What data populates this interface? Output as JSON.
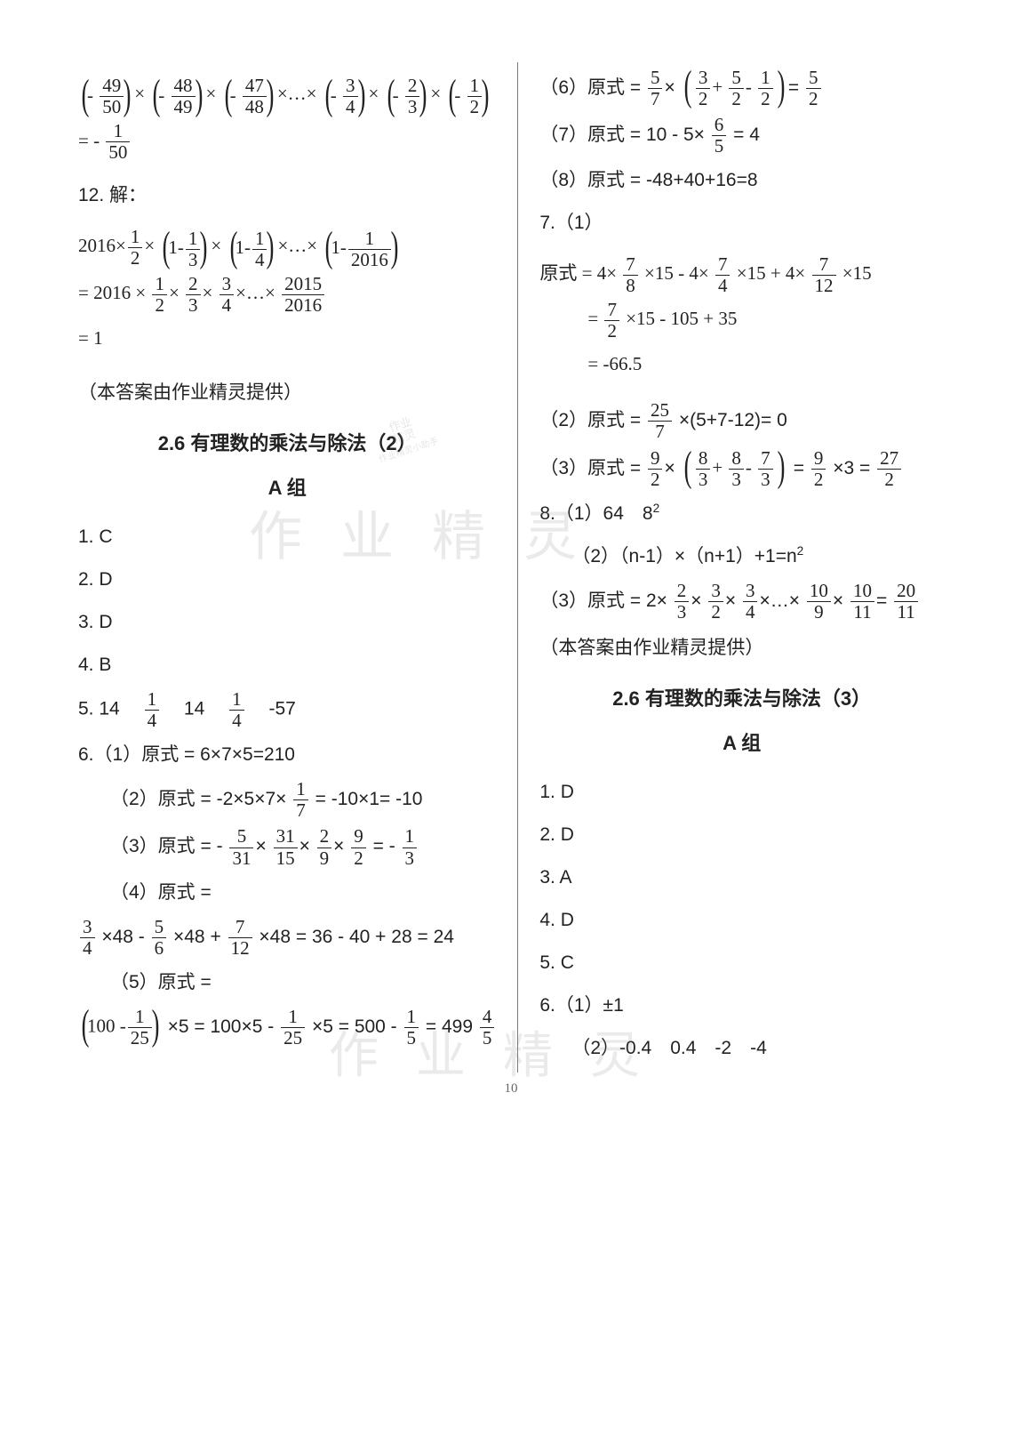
{
  "page_number": "10",
  "watermarks": {
    "main": "作 业 精 灵",
    "seal_l1": "作业",
    "seal_l2": "精灵",
    "seal_l3": "作业精灵小助手"
  },
  "left": {
    "eq11_1": {
      "f49_50_n": "49",
      "f49_50_d": "50",
      "f48_49_n": "48",
      "f48_49_d": "49",
      "f47_48_n": "47",
      "f47_48_d": "48",
      "f3_4_n": "3",
      "f3_4_d": "4",
      "f2_3_n": "2",
      "f2_3_d": "3",
      "f1_2_n": "1",
      "f1_2_d": "2",
      "res_n": "1",
      "res_d": "50"
    },
    "item12_label": "12. 解：",
    "eq12": {
      "a": "2016",
      "h_n": "1",
      "h_d": "2",
      "t1_a": "1",
      "t1_n": "1",
      "t1_d": "3",
      "t2_a": "1",
      "t2_n": "1",
      "t2_d": "4",
      "tn_a": "1",
      "tn_n": "1",
      "tn_d": "2016",
      "line2_pre": "= 2016 ×",
      "f1n": "1",
      "f1d": "2",
      "f2n": "2",
      "f2d": "3",
      "f3n": "3",
      "f3d": "4",
      "fln": "2015",
      "fld": "2016",
      "line3": "= 1"
    },
    "note1": "（本答案由作业精灵提供）",
    "heading2_6_2": "2.6 有理数的乘法与除法（2）",
    "groupA": "A 组",
    "a1": "1. C",
    "a2": "2. D",
    "a3": "3. D",
    "a4": "4. B",
    "a5_pre": "5. 14",
    "a5_f1n": "1",
    "a5_f1d": "4",
    "a5_mid": "14",
    "a5_f2n": "1",
    "a5_f2d": "4",
    "a5_end": "-57",
    "a6_1": "6.（1）原式 = 6×7×5=210",
    "a6_2_pre": "（2）原式 =",
    "a6_2_body": "-2×5×7×",
    "a6_2_fn": "1",
    "a6_2_fd": "7",
    "a6_2_mid": "= -10×1= -10",
    "a6_3_pre": "（3）原式 =",
    "a6_3_f1n": "5",
    "a6_3_f1d": "31",
    "a6_3_f2n": "31",
    "a6_3_f2d": "15",
    "a6_3_f3n": "2",
    "a6_3_f3d": "9",
    "a6_3_f4n": "9",
    "a6_3_f4d": "2",
    "a6_3_rn": "1",
    "a6_3_rd": "3",
    "a6_4_pre": "（4）原式 =",
    "a6_4_f1n": "3",
    "a6_4_f1d": "4",
    "a6_4_m1": "×48 -",
    "a6_4_f2n": "5",
    "a6_4_f2d": "6",
    "a6_4_m2": "×48 +",
    "a6_4_f3n": "7",
    "a6_4_f3d": "12",
    "a6_4_m3": "×48 = 36 - 40 + 28 = 24",
    "a6_5_pre": "（5）原式 =",
    "a6_5_pa": "100 -",
    "a6_5_pfn": "1",
    "a6_5_pfd": "25",
    "a6_5_m1": "×5 = 100×5 -",
    "a6_5_f2n": "1",
    "a6_5_f2d": "25",
    "a6_5_m2": "×5 = 500 -",
    "a6_5_f3n": "1",
    "a6_5_f3d": "5",
    "a6_5_m3": "= 499",
    "a6_5_rfn": "4",
    "a6_5_rfd": "5"
  },
  "right": {
    "a6_6_pre": "（6）原式 =",
    "a6_6_f1n": "5",
    "a6_6_f1d": "7",
    "a6_6_p1n": "3",
    "a6_6_p1d": "2",
    "a6_6_p2n": "5",
    "a6_6_p2d": "2",
    "a6_6_p3n": "1",
    "a6_6_p3d": "2",
    "a6_6_rn": "5",
    "a6_6_rd": "2",
    "a6_7_pre": "（7）原式 = 10 - 5×",
    "a6_7_fn": "6",
    "a6_7_fd": "5",
    "a6_7_end": "= 4",
    "a6_8": "（8）原式 = -48+40+16=8",
    "a7_label": "7.（1）",
    "a7_1_pre": "原式 = 4×",
    "a7_1_f1n": "7",
    "a7_1_f1d": "8",
    "a7_1_m1": "×15 - 4×",
    "a7_1_f2n": "7",
    "a7_1_f2d": "4",
    "a7_1_m2": "×15 + 4×",
    "a7_1_f3n": "7",
    "a7_1_f3d": "12",
    "a7_1_m3": "×15",
    "a7_1_l2": "=",
    "a7_1_l2fn": "7",
    "a7_1_l2fd": "2",
    "a7_1_l2end": "×15 - 105 + 35",
    "a7_1_l3": "= -66.5",
    "a7_2_pre": "（2）原式 =",
    "a7_2_fn": "25",
    "a7_2_fd": "7",
    "a7_2_body": "×(5+7-12)= 0",
    "a7_3_pre": "（3）原式 =",
    "a7_3_f1n": "9",
    "a7_3_f1d": "2",
    "a7_3_p1n": "8",
    "a7_3_p1d": "3",
    "a7_3_p2n": "8",
    "a7_3_p2d": "3",
    "a7_3_p3n": "7",
    "a7_3_p3d": "3",
    "a7_3_mid": "=",
    "a7_3_f2n": "9",
    "a7_3_f2d": "2",
    "a7_3_m2": "×3 =",
    "a7_3_rn": "27",
    "a7_3_rd": "2",
    "a8_1": "8.（1）64　8",
    "a8_1_sup": "2",
    "a8_2": "（2）（n-1）×（n+1）+1=n",
    "a8_2_sup": "2",
    "a8_3_pre": "（3）原式 = 2×",
    "a8_3_f1n": "2",
    "a8_3_f1d": "3",
    "a8_3_f2n": "3",
    "a8_3_f2d": "2",
    "a8_3_f3n": "3",
    "a8_3_f3d": "4",
    "a8_3_f4n": "10",
    "a8_3_f4d": "9",
    "a8_3_f5n": "10",
    "a8_3_f5d": "11",
    "a8_3_rn": "20",
    "a8_3_rd": "11",
    "note2": "（本答案由作业精灵提供）",
    "heading2_6_3": "2.6 有理数的乘法与除法（3）",
    "groupA": "A 组",
    "b1": "1. D",
    "b2": "2. D",
    "b3": "3. A",
    "b4": "4. D",
    "b5": "5. C",
    "b6_1": "6.（1）±1",
    "b6_2": "（2）-0.4　0.4　-2　-4"
  }
}
